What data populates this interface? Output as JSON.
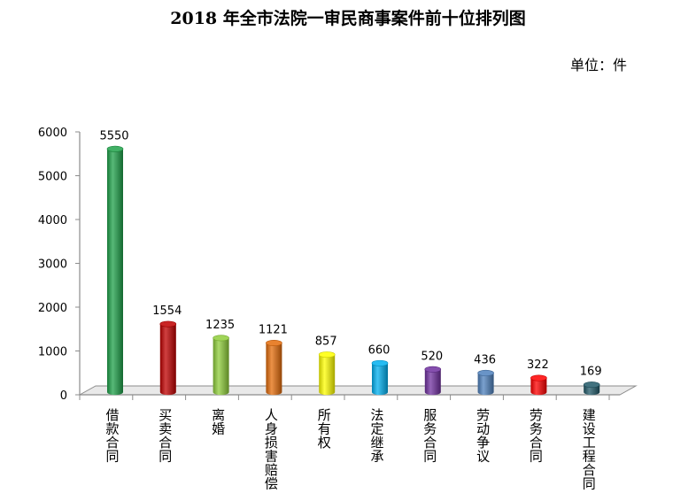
{
  "title": "2018 年全市法院一审民商事案件前十位排列图",
  "unit_label": "单位：件",
  "chart_data": {
    "type": "bar",
    "title": "2018 年全市法院一审民商事案件前十位排列图",
    "categories": [
      "借款合同",
      "买卖合同",
      "离婚",
      "人身损害赔偿",
      "所有权",
      "法定继承",
      "服务合同",
      "劳动争议",
      "劳务合同",
      "建设工程合同"
    ],
    "values": [
      5550,
      1554,
      1235,
      1121,
      857,
      660,
      520,
      436,
      322,
      169
    ],
    "colors": [
      "#1fa24a",
      "#c00000",
      "#8fce3a",
      "#e46c0a",
      "#ffff00",
      "#00b0f0",
      "#7030a0",
      "#4f81bd",
      "#ff0000",
      "#215968"
    ],
    "y_ticks": [
      0,
      1000,
      2000,
      3000,
      4000,
      5000,
      6000
    ],
    "ylim": [
      0,
      6000
    ],
    "grid": false,
    "legend": "none"
  }
}
